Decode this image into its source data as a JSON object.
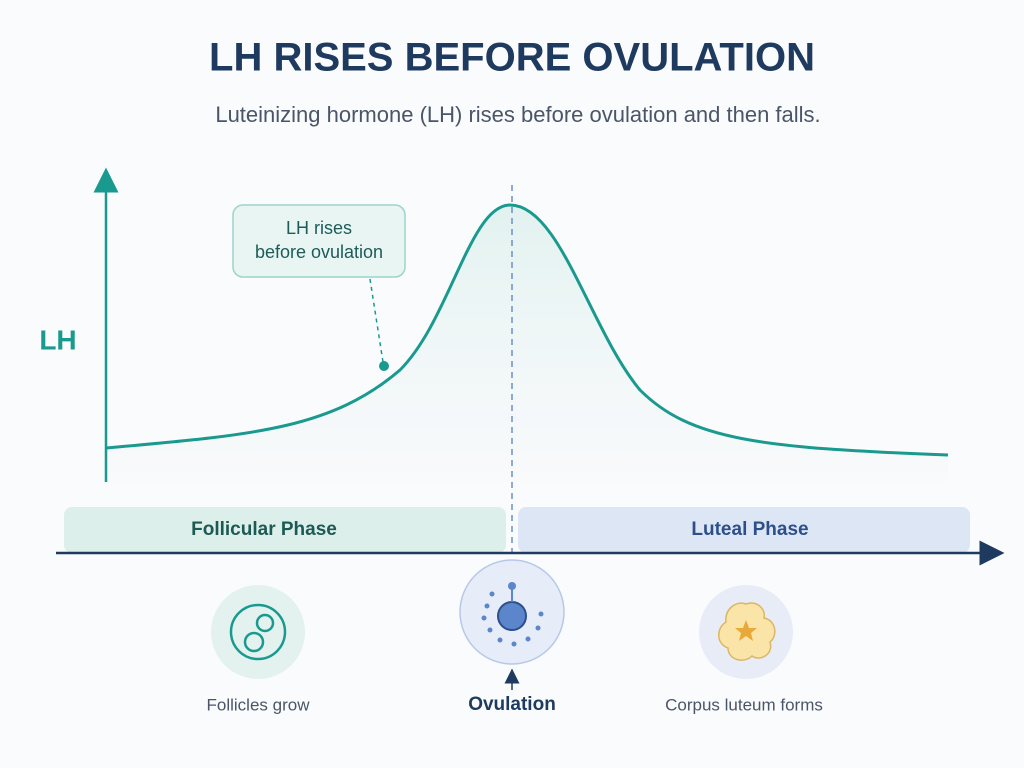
{
  "header": {
    "title": "LH RISES BEFORE OVULATION",
    "subtitle": "Luteinizing hormone (LH) rises before ovulation and then falls."
  },
  "axis": {
    "y_label": "LH"
  },
  "callout": {
    "lines": [
      "LH rises",
      "before ovulation"
    ]
  },
  "phases": [
    "Follicular Phase",
    "Luteal Phase"
  ],
  "stages": [
    "Follicles grow",
    "Ovulation",
    "Corpus luteum forms"
  ]
}
